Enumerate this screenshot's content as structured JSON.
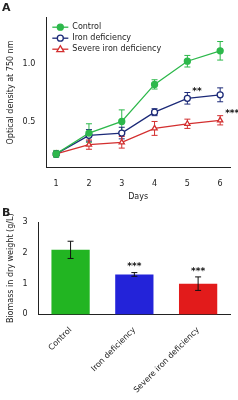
{
  "chart_data": [
    {
      "type": "line",
      "title": "A",
      "x_label": "Days",
      "y_label": "Optical density at 750 nm",
      "x": [
        1,
        2,
        3,
        4,
        5,
        6
      ],
      "series": [
        {
          "name": "Control",
          "color": "#2db84b",
          "marker": "circle",
          "values": [
            0.22,
            0.4,
            0.5,
            0.82,
            1.02,
            1.11
          ],
          "errors": [
            0.03,
            0.08,
            0.1,
            0.04,
            0.05,
            0.08
          ]
        },
        {
          "name": "Iron deficiency",
          "color": "#1c2a78",
          "marker": "open_circle",
          "values": [
            0.22,
            0.38,
            0.4,
            0.58,
            0.7,
            0.73
          ],
          "errors": [
            0.02,
            0.05,
            0.05,
            0.03,
            0.05,
            0.06
          ]
        },
        {
          "name": "Severe iron deficiency",
          "color": "#d32f2f",
          "marker": "open_triangle",
          "values": [
            0.22,
            0.3,
            0.32,
            0.44,
            0.48,
            0.51
          ],
          "errors": [
            0.02,
            0.04,
            0.05,
            0.06,
            0.04,
            0.04
          ]
        }
      ],
      "xlim": [
        0.7,
        6.3
      ],
      "xticks": [
        1,
        2,
        3,
        4,
        5,
        6
      ],
      "ylim": [
        0.1,
        1.4
      ],
      "yticks": [
        0.5,
        {
          "value": 1,
          "label": "1.0"
        }
      ],
      "annotations": [
        {
          "text": "**",
          "series": "Iron deficiency",
          "x": 5
        },
        {
          "text": "***",
          "series": "Severe iron deficiency",
          "x": 6
        }
      ],
      "legend": "upper left",
      "grid": false
    },
    {
      "type": "bar",
      "title": "B",
      "y_label": "Biomass in dry weight (g/L)",
      "categories": [
        "Control",
        "Iron deficiency",
        "Severe iron deficiency"
      ],
      "values": [
        2.1,
        1.3,
        1.0
      ],
      "errors": [
        0.28,
        0.06,
        0.22
      ],
      "colors": [
        "#22b522",
        "#2323d9",
        "#e21b1b"
      ],
      "ylim": [
        0,
        3
      ],
      "yticks": [
        0,
        1,
        2,
        3
      ],
      "annotations": [
        {
          "text": "***",
          "category": "Iron deficiency"
        },
        {
          "text": "***",
          "category": "Severe iron deficiency"
        }
      ],
      "grid": false
    }
  ]
}
